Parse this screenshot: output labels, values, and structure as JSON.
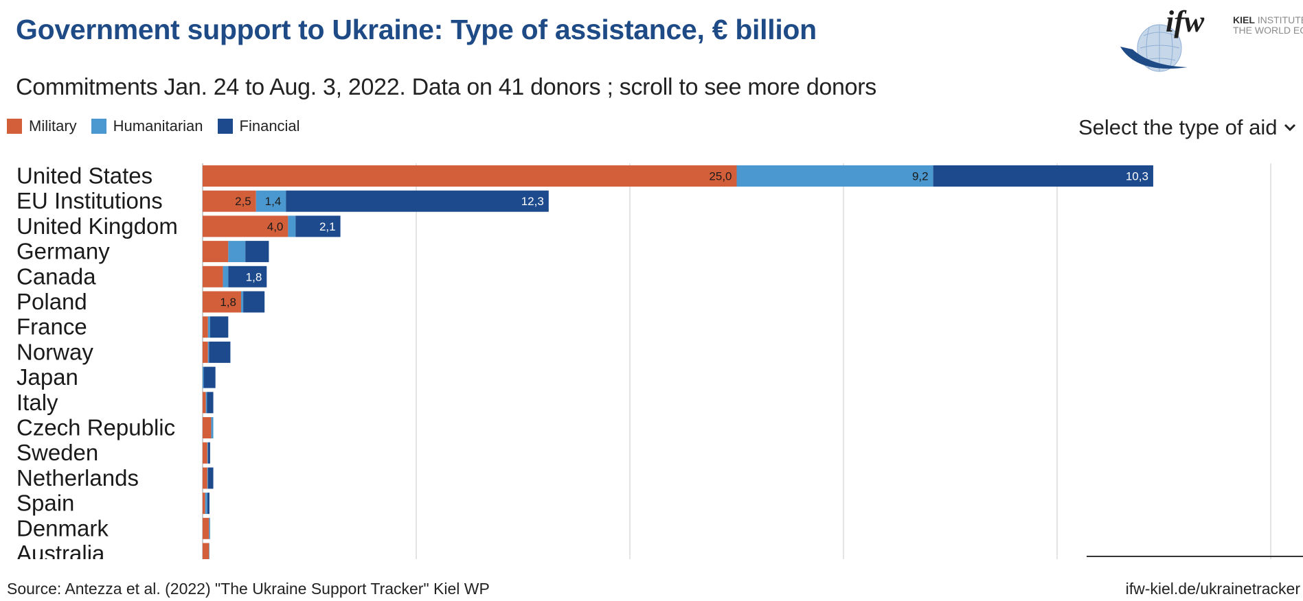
{
  "header": {
    "title": "Government support to Ukraine: Type of assistance, € billion",
    "subtitle": "Commitments Jan. 24 to Aug. 3, 2022. Data on 41 donors ; scroll to see more donors"
  },
  "logo": {
    "mark": "ifw",
    "text_bold": "KIEL",
    "text_line1": " INSTITUTE FOR",
    "text_line2": "THE WORLD ECONOMY"
  },
  "legend": [
    {
      "label": "Military",
      "color": "#d35e3a"
    },
    {
      "label": "Humanitarian",
      "color": "#4a98cf"
    },
    {
      "label": "Financial",
      "color": "#1d4a8c"
    }
  ],
  "selector": {
    "label": "Select the type of aid",
    "icon": "chevron-down-icon"
  },
  "footer": {
    "source": "Source: Antezza et al. (2022) \"The Ukraine Support Tracker\" Kiel WP",
    "link": "ifw-kiel.de/ukrainetracker"
  },
  "chart_data": {
    "type": "bar",
    "orientation": "horizontal",
    "stacked": true,
    "xlim": [
      0,
      50
    ],
    "grid": true,
    "categories": [
      "United States",
      "EU Institutions",
      "United Kingdom",
      "Germany",
      "Canada",
      "Poland",
      "France",
      "Norway",
      "Japan",
      "Italy",
      "Czech Republic",
      "Sweden",
      "Netherlands",
      "Spain",
      "Denmark",
      "Australia"
    ],
    "series": [
      {
        "name": "Military",
        "color": "#d35e3a",
        "values": [
          25.0,
          2.5,
          4.0,
          1.2,
          0.95,
          1.8,
          0.25,
          0.25,
          0,
          0.15,
          0.4,
          0.22,
          0.22,
          0.12,
          0.3,
          0.3
        ]
      },
      {
        "name": "Humanitarian",
        "color": "#4a98cf",
        "values": [
          9.2,
          1.4,
          0.35,
          0.8,
          0.25,
          0.1,
          0.1,
          0.05,
          0.05,
          0.05,
          0.1,
          0.03,
          0.03,
          0.1,
          0.05,
          0.02
        ]
      },
      {
        "name": "Financial",
        "color": "#1d4a8c",
        "values": [
          10.3,
          12.3,
          2.1,
          1.1,
          1.8,
          1.0,
          0.85,
          1.0,
          0.55,
          0.3,
          0,
          0.1,
          0.25,
          0.1,
          0,
          0
        ]
      }
    ],
    "value_labels": [
      [
        "25,0",
        "9,2",
        "10,3"
      ],
      [
        "2,5",
        "1,4",
        "12,3"
      ],
      [
        "4,0",
        "",
        "2,1"
      ],
      [
        "",
        "",
        ""
      ],
      [
        "",
        "",
        "1,8"
      ],
      [
        "1,8",
        "",
        ""
      ],
      [
        "",
        "",
        ""
      ],
      [
        "",
        "",
        ""
      ],
      [
        "",
        "",
        ""
      ],
      [
        "",
        "",
        ""
      ],
      [
        "",
        "",
        ""
      ],
      [
        "",
        "",
        ""
      ],
      [
        "",
        "",
        ""
      ],
      [
        "",
        "",
        ""
      ],
      [
        "",
        "",
        ""
      ],
      [
        "",
        "",
        ""
      ]
    ]
  }
}
